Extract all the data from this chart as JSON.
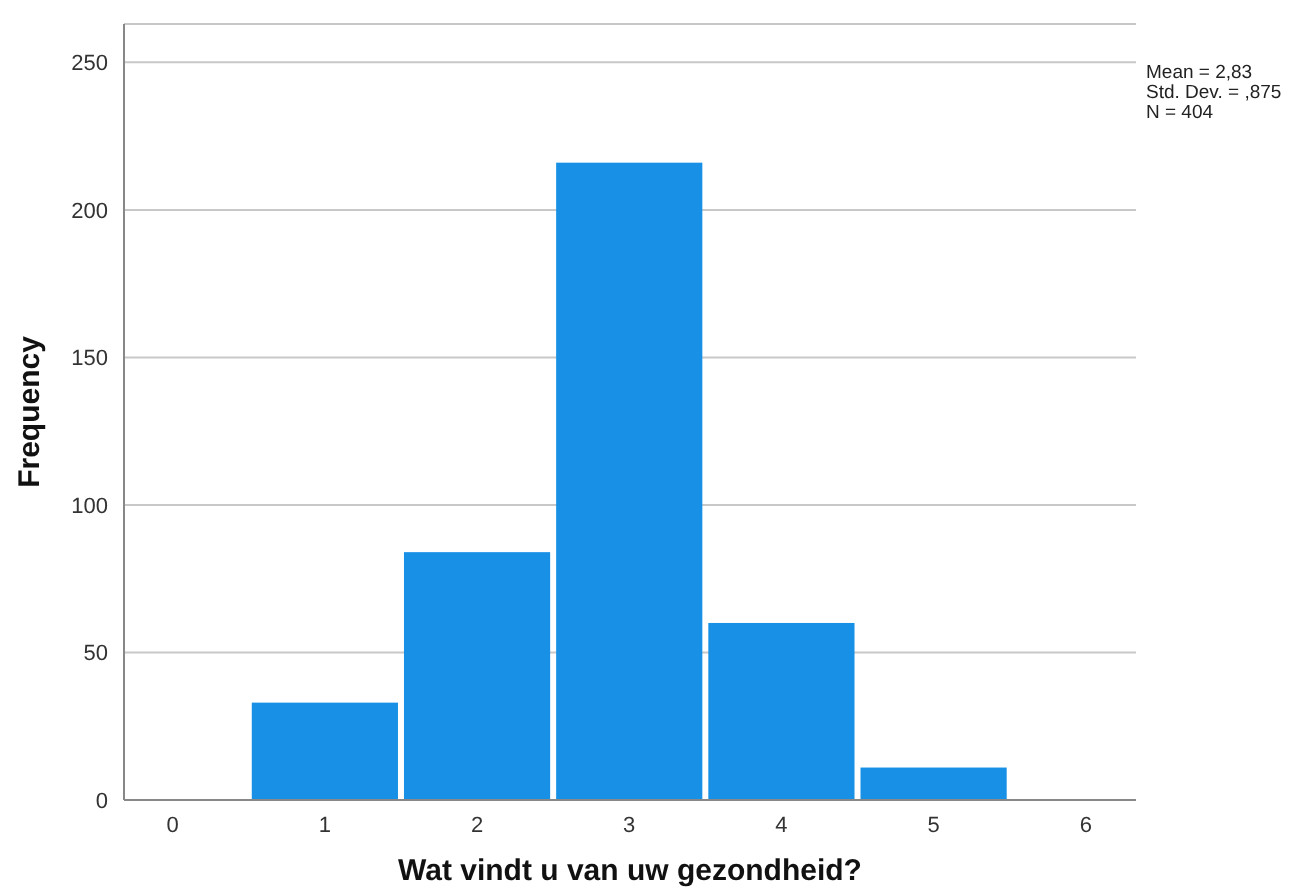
{
  "chart_data": {
    "type": "histogram",
    "xlabel": "Wat vindt u van uw gezondheid?",
    "ylabel": "Frequency",
    "bins": [
      0.5,
      1.5,
      2.5,
      3.5,
      4.5,
      5.5
    ],
    "values": [
      33,
      84,
      216,
      60,
      11
    ],
    "color": "#1790e6",
    "xlim": [
      -0.32,
      6.33
    ],
    "xticks": [
      0,
      1,
      2,
      3,
      4,
      5,
      6
    ],
    "ylim": [
      0,
      263
    ],
    "yticks": [
      0,
      50,
      100,
      150,
      200,
      250
    ],
    "grid": "y",
    "legend": false,
    "annotations": [
      "Mean = 2,83",
      "Std. Dev. = ,875",
      "N = 404"
    ]
  }
}
